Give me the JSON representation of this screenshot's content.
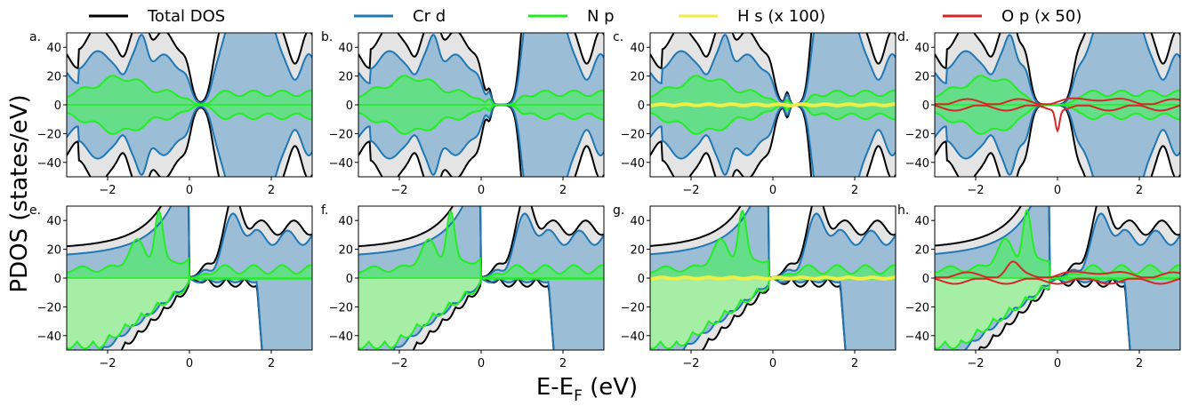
{
  "chart_data": {
    "type": "area",
    "ylabel": "PDOS (states/eV)",
    "xlabel_main": "E-E",
    "xlabel_sub": "F",
    "xlabel_unit": " (eV)",
    "xlim": [
      -3,
      3
    ],
    "ylim": [
      -50,
      50
    ],
    "x_ticks": [
      "−2",
      "0",
      "2"
    ],
    "y_ticks": [
      "40",
      "20",
      "0",
      "−20",
      "−40"
    ],
    "legend": [
      {
        "key": "total",
        "label": "Total DOS",
        "color": "#000000"
      },
      {
        "key": "cr",
        "label": "Cr d",
        "color": "#1f77b4"
      },
      {
        "key": "n",
        "label": "N p",
        "color": "#22ee22"
      },
      {
        "key": "h",
        "label": "H s (x 100)",
        "color": "#eeee44"
      },
      {
        "key": "o",
        "label": "O p (x 50)",
        "color": "#d62728"
      }
    ],
    "colors": {
      "total_fill": "#e4e4e4",
      "cr_fill": "#9bbdd6",
      "n_fill": "#66dd88",
      "n_fill_low": "#a6eea6"
    },
    "panels": [
      {
        "label": "a.",
        "row": 0,
        "col": 0,
        "gap": [
          0.0,
          0.55
        ],
        "hasH": false,
        "hasO": false,
        "extraPeak": false
      },
      {
        "label": "b.",
        "row": 0,
        "col": 1,
        "gap": [
          0.0,
          0.95
        ],
        "hasH": false,
        "hasO": false,
        "extraPeak": true,
        "peakAt": 0.2
      },
      {
        "label": "c.",
        "row": 0,
        "col": 2,
        "gap": [
          0.0,
          0.9
        ],
        "hasH": true,
        "hasO": false,
        "extraPeak": true,
        "peakAt": 0.35
      },
      {
        "label": "d.",
        "row": 0,
        "col": 3,
        "gap": [
          -0.7,
          0.4
        ],
        "hasH": false,
        "hasO": true,
        "extraPeak": false
      },
      {
        "label": "e.",
        "row": 1,
        "col": 0,
        "gap": [
          0.0,
          0.55
        ],
        "hasH": false,
        "hasO": false,
        "extraPeak": false
      },
      {
        "label": "f.",
        "row": 1,
        "col": 1,
        "gap": [
          0.0,
          0.95
        ],
        "hasH": false,
        "hasO": false,
        "extraPeak": false
      },
      {
        "label": "g.",
        "row": 1,
        "col": 2,
        "gap": [
          -0.1,
          0.9
        ],
        "hasH": true,
        "hasO": false,
        "extraPeak": false
      },
      {
        "label": "h.",
        "row": 1,
        "col": 3,
        "gap": [
          -0.2,
          0.5
        ],
        "hasH": false,
        "hasO": true,
        "extraPeak": false
      }
    ]
  }
}
